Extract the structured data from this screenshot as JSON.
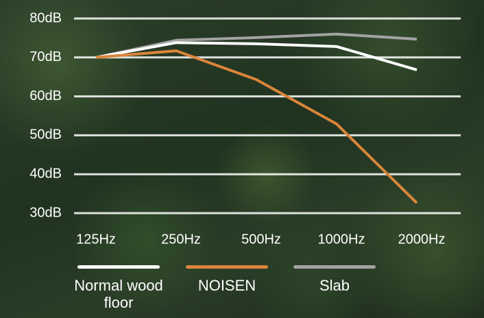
{
  "chart_data": {
    "type": "line",
    "categories": [
      "125Hz",
      "250Hz",
      "500Hz",
      "1000Hz",
      "2000Hz"
    ],
    "series": [
      {
        "name": "Normal wood floor",
        "color": "#ffffff",
        "values": [
          70,
          73.8,
          73.5,
          72.8,
          66.8
        ]
      },
      {
        "name": "NOISEN",
        "color": "#d9853b",
        "values": [
          70,
          71.7,
          64.3,
          52.9,
          32.6
        ]
      },
      {
        "name": "Slab",
        "color": "#a3a3a3",
        "values": [
          70,
          74.4,
          75.1,
          76,
          74.7
        ]
      }
    ],
    "ylim": [
      30,
      80
    ],
    "yticks": [
      {
        "value": 30,
        "label": "30dB"
      },
      {
        "value": 40,
        "label": "40dB"
      },
      {
        "value": 50,
        "label": "50dB"
      },
      {
        "value": 60,
        "label": "60dB"
      },
      {
        "value": 70,
        "label": "70dB"
      },
      {
        "value": 80,
        "label": "80dB"
      }
    ],
    "grid": true,
    "legend": "bottom"
  }
}
